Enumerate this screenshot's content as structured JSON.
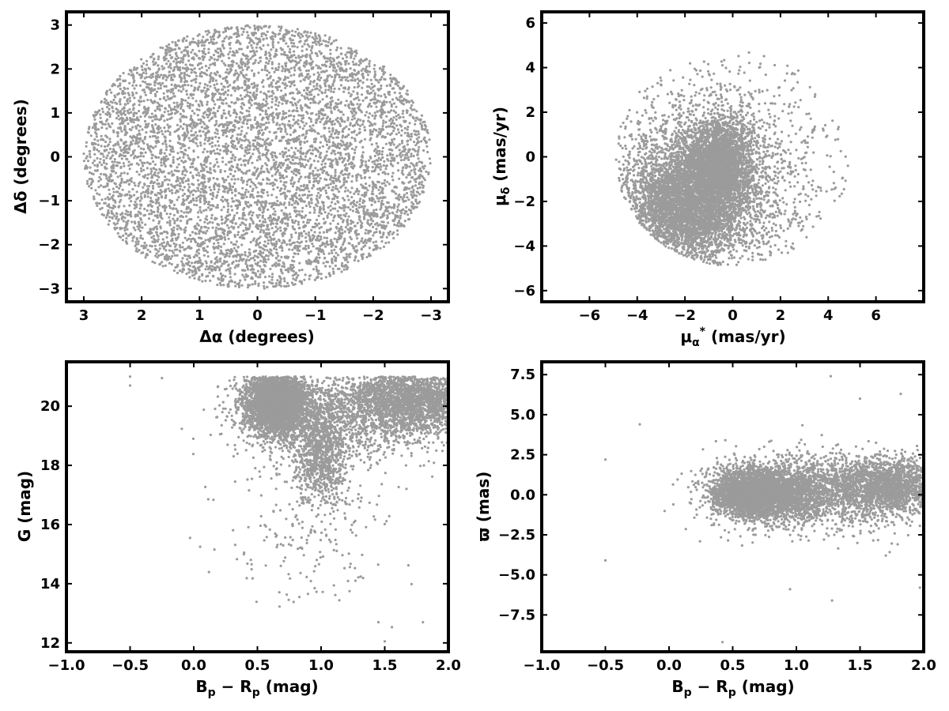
{
  "chart_data": [
    {
      "type": "scatter",
      "xlabel": "Δα (degrees)",
      "ylabel": "Δδ (degrees)",
      "xlim": [
        3.3,
        -3.3
      ],
      "ylim": [
        -3.3,
        3.3
      ],
      "xticks": [
        3,
        2,
        1,
        0,
        -1,
        -2,
        -3
      ],
      "yticks": [
        -3,
        -2,
        -1,
        0,
        1,
        2,
        3
      ],
      "xtick_labels": [
        "3",
        "2",
        "1",
        "0",
        "−1",
        "−2",
        "−3"
      ],
      "ytick_labels": [
        "−3",
        "−2",
        "−1",
        "0",
        "1",
        "2",
        "3"
      ],
      "color": "#9b9b9b",
      "distribution": {
        "shape": "uniform-disk",
        "center": [
          0,
          0
        ],
        "radius": 3.0,
        "n_points": 6500
      }
    },
    {
      "type": "scatter",
      "xlabel": "μα* (mas/yr)",
      "ylabel": "μδ (mas/yr)",
      "xlim": [
        -8,
        8
      ],
      "ylim": [
        -6.5,
        6.5
      ],
      "xticks": [
        -6,
        -4,
        -2,
        0,
        2,
        4,
        6
      ],
      "yticks": [
        -6,
        -4,
        -2,
        0,
        2,
        4,
        6
      ],
      "xtick_labels": [
        "−6",
        "−4",
        "−2",
        "0",
        "2",
        "4",
        "6"
      ],
      "ytick_labels": [
        "−6",
        "−4",
        "−2",
        "0",
        "2",
        "4",
        "6"
      ],
      "color": "#9b9b9b",
      "distribution": {
        "shape": "clipped-disk",
        "clip_center": [
          0,
          0
        ],
        "clip_radius": 4.9,
        "components": [
          {
            "center": [
              -0.6,
              -0.3
            ],
            "sigma": [
              0.7,
              1.0
            ],
            "n_points": 2600
          },
          {
            "center": [
              -2.0,
              -2.3
            ],
            "sigma": [
              1.2,
              1.2
            ],
            "n_points": 3200
          },
          {
            "center": [
              -0.8,
              -1.0
            ],
            "sigma": [
              2.3,
              2.3
            ],
            "n_points": 2200
          }
        ]
      }
    },
    {
      "type": "scatter",
      "xlabel": "Bp − Rp (mag)",
      "ylabel": "G (mag)",
      "xlim": [
        -1.0,
        2.0
      ],
      "ylim": [
        11.7,
        21.5
      ],
      "xticks": [
        -1.0,
        -0.5,
        0.0,
        0.5,
        1.0,
        1.5,
        2.0
      ],
      "yticks": [
        12,
        14,
        16,
        18,
        20
      ],
      "xtick_labels": [
        "−1.0",
        "−0.5",
        "0.0",
        "0.5",
        "1.0",
        "1.5",
        "2.0"
      ],
      "ytick_labels": [
        "12",
        "14",
        "16",
        "18",
        "20"
      ],
      "color": "#9b9b9b",
      "distribution": {
        "shape": "color-magnitude",
        "g_limit": 21.0,
        "components": [
          {
            "center": [
              0.65,
              20.1
            ],
            "sigma": [
              0.13,
              0.55
            ],
            "n_points": 3300
          },
          {
            "center": [
              1.0,
              18.4
            ],
            "sigma": [
              0.1,
              0.8
            ],
            "n_points": 900
          },
          {
            "center": [
              1.7,
              20.2
            ],
            "sigma": [
              0.25,
              0.6
            ],
            "n_points": 1800
          },
          {
            "center": [
              1.2,
              19.8
            ],
            "sigma": [
              0.4,
              0.8
            ],
            "n_points": 1200
          },
          {
            "center": [
              0.9,
              16.5
            ],
            "sigma": [
              0.35,
              1.6
            ],
            "n_points": 260
          }
        ],
        "outliers": [
          [
            -0.5,
            21.0
          ],
          [
            -0.5,
            20.7
          ],
          [
            -0.25,
            20.95
          ],
          [
            0.05,
            15.25
          ],
          [
            1.5,
            12.05
          ],
          [
            1.45,
            12.7
          ],
          [
            1.8,
            12.7
          ],
          [
            0.83,
            13.55
          ],
          [
            0.95,
            13.85
          ],
          [
            1.27,
            14.1
          ]
        ]
      }
    },
    {
      "type": "scatter",
      "xlabel": "Bp − Rp (mag)",
      "ylabel": "ϖ (mas)",
      "xlim": [
        -1.0,
        2.0
      ],
      "ylim": [
        -9.8,
        8.3
      ],
      "xticks": [
        -1.0,
        -0.5,
        0.0,
        0.5,
        1.0,
        1.5,
        2.0
      ],
      "yticks": [
        -7.5,
        -5.0,
        -2.5,
        0.0,
        2.5,
        5.0,
        7.5
      ],
      "xtick_labels": [
        "−1.0",
        "−0.5",
        "0.0",
        "0.5",
        "1.0",
        "1.5",
        "2.0"
      ],
      "ytick_labels": [
        "−7.5",
        "−5.0",
        "−2.5",
        "0.0",
        "2.5",
        "5.0",
        "7.5"
      ],
      "color": "#9b9b9b",
      "distribution": {
        "shape": "parallax-band",
        "components": [
          {
            "center": [
              0.65,
              0.1
            ],
            "sigma": [
              0.15,
              0.75
            ],
            "n_points": 3300
          },
          {
            "center": [
              1.0,
              0.0
            ],
            "sigma": [
              0.12,
              0.9
            ],
            "n_points": 900
          },
          {
            "center": [
              1.7,
              0.55
            ],
            "sigma": [
              0.25,
              0.85
            ],
            "n_points": 1800
          },
          {
            "center": [
              1.25,
              0.2
            ],
            "sigma": [
              0.4,
              1.3
            ],
            "n_points": 1200
          }
        ],
        "outliers": [
          [
            -0.5,
            2.2
          ],
          [
            -0.5,
            -4.1
          ],
          [
            -0.23,
            4.4
          ],
          [
            0.42,
            -9.2
          ],
          [
            1.27,
            7.4
          ],
          [
            1.5,
            6.0
          ],
          [
            1.28,
            -6.6
          ],
          [
            0.95,
            -5.9
          ],
          [
            1.97,
            -5.8
          ],
          [
            1.82,
            6.3
          ]
        ]
      }
    }
  ]
}
